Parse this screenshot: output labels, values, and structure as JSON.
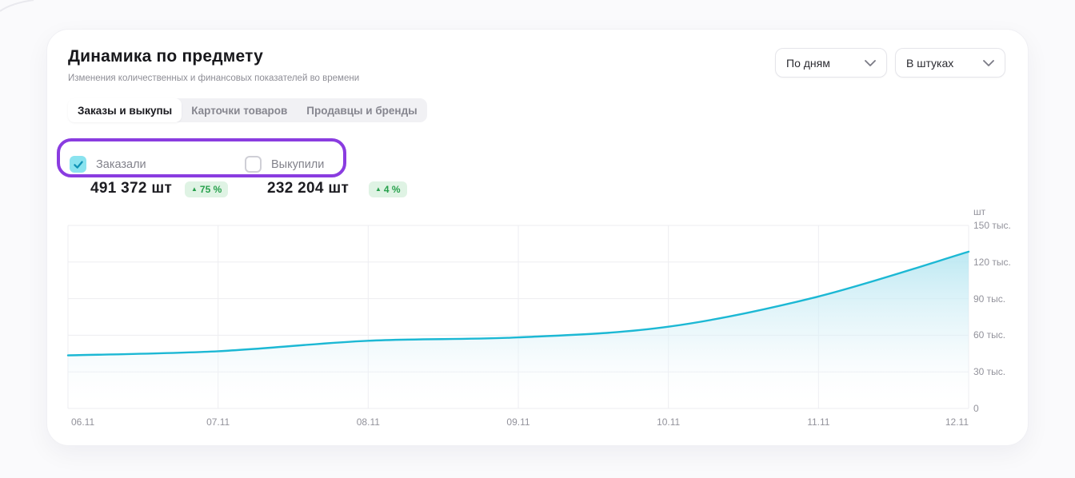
{
  "header": {
    "title": "Динамика по предмету",
    "subtitle": "Изменения количественных и финансовых показателей во времени"
  },
  "controls": {
    "period_dropdown": {
      "value": "По дням",
      "icon": "chevron-down"
    },
    "units_dropdown": {
      "value": "В штуках",
      "icon": "chevron-down"
    }
  },
  "tabs": [
    {
      "label": "Заказы и выкупы",
      "active": true
    },
    {
      "label": "Карточки товаров",
      "active": false
    },
    {
      "label": "Продавцы и бренды",
      "active": false
    }
  ],
  "series_toggles": [
    {
      "label": "Заказали",
      "checked": true
    },
    {
      "label": "Выкупили",
      "checked": false
    }
  ],
  "stats": [
    {
      "amount": "491 372 шт",
      "delta_icon": "▲",
      "delta": "75 %",
      "trend": "up"
    },
    {
      "amount": "232 204 шт",
      "delta_icon": "▲",
      "delta": "4 %",
      "trend": "up"
    }
  ],
  "colors": {
    "accent_line": "#1cb8d4",
    "highlight_outline": "#8a3ce0",
    "checkbox_checked_bg": "#8ae3ef",
    "checkbox_check": "#0f93b6",
    "badge_bg": "#dff3e4",
    "badge_text": "#27a04c",
    "grid": "#ededf1",
    "tick_text": "#92929b"
  },
  "chart_data": {
    "type": "area",
    "title": "",
    "x": [
      "06.11",
      "07.11",
      "08.11",
      "09.11",
      "10.11",
      "11.11",
      "12.11"
    ],
    "series": [
      {
        "name": "Заказали",
        "values": [
          43500,
          46900,
          55500,
          58200,
          67000,
          91800,
          128472
        ]
      }
    ],
    "unit_label": "шт",
    "yticks": [
      "150 тыс.",
      "120 тыс.",
      "90 тыс.",
      "60 тыс.",
      "30 тыс.",
      "0"
    ],
    "ytick_values": [
      150000,
      120000,
      90000,
      60000,
      30000,
      0
    ],
    "ylim": [
      0,
      150000
    ],
    "grid": true,
    "legend_position": "none",
    "line_color": "#1cb8d4",
    "grid_color": "#ededf1",
    "area_gradient": [
      {
        "offset": 0,
        "color": "#b5e6f1",
        "opacity": 0.9
      },
      {
        "offset": 0.55,
        "color": "#ddf2f8",
        "opacity": 0.5
      },
      {
        "offset": 1,
        "color": "#ffffff",
        "opacity": 0
      }
    ]
  }
}
